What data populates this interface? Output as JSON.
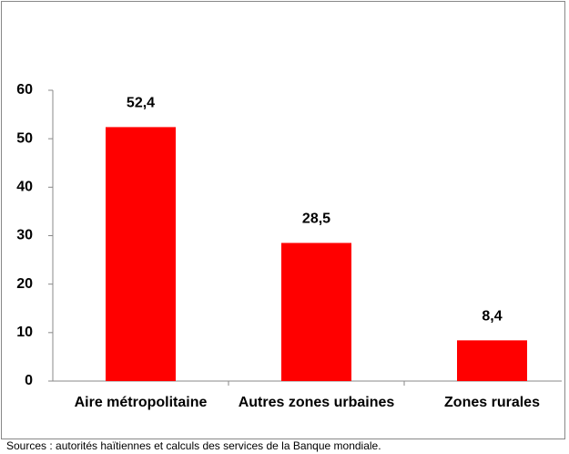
{
  "chart_data": {
    "type": "bar",
    "categories": [
      "Aire métropolitaine",
      "Autres zones urbaines",
      "Zones rurales"
    ],
    "values": [
      52.4,
      28.5,
      8.4
    ],
    "value_labels": [
      "52,4",
      "28,5",
      "8,4"
    ],
    "color": "#ff0000",
    "ylim": [
      0,
      60
    ],
    "yticks": [
      0,
      10,
      20,
      30,
      40,
      50,
      60
    ],
    "grid": false,
    "note": "Sources : autorités haïtiennes et calculs des services de la Banque mondiale."
  }
}
